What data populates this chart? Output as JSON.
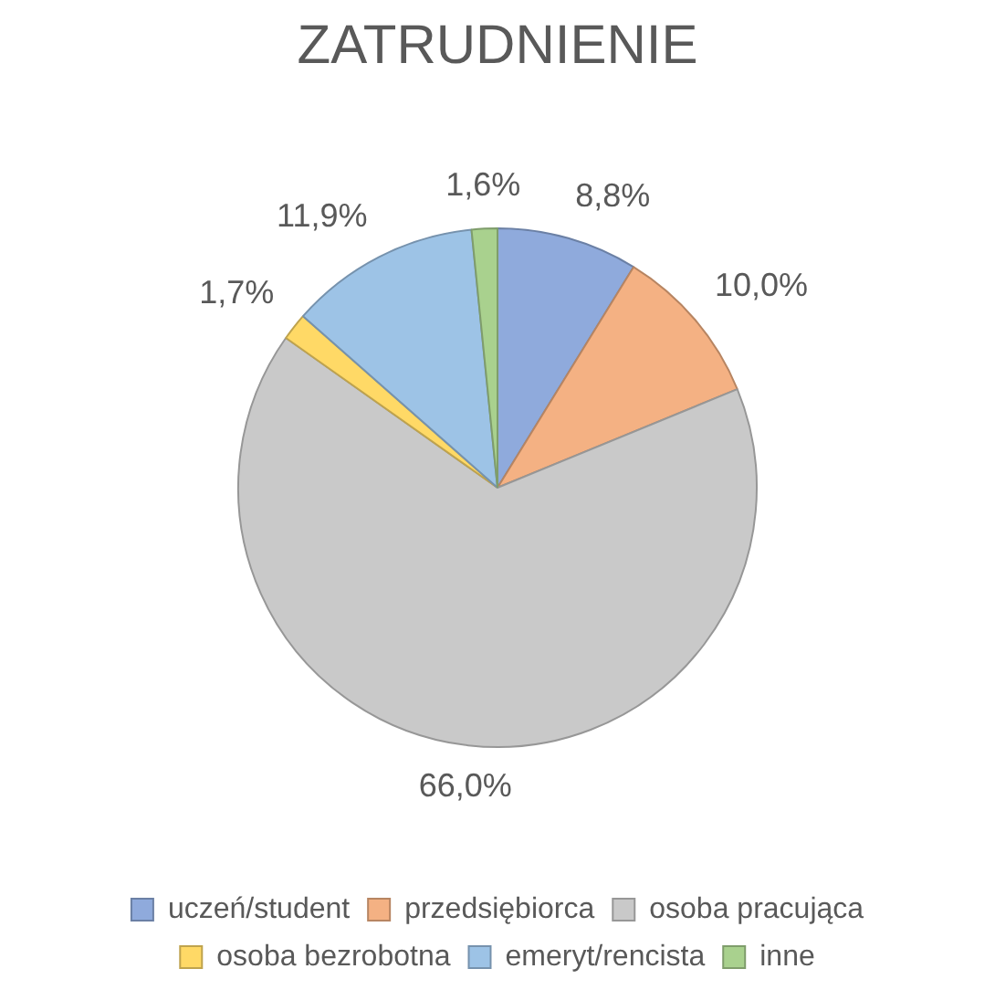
{
  "chart_data": {
    "type": "pie",
    "title": "ZATRUDNIENIE",
    "categories": [
      "uczeń/student",
      "przedsiębiorca",
      "osoba pracująca",
      "osoba bezrobotna",
      "emeryt/rencista",
      "inne"
    ],
    "values": [
      8.8,
      10.0,
      66.0,
      1.7,
      11.9,
      1.6
    ],
    "colors": [
      "#8faadc",
      "#f4b183",
      "#c9c9c9",
      "#ffd966",
      "#9dc3e6",
      "#a9d18e"
    ],
    "value_labels": [
      "8,8%",
      "10,0%",
      "66,0%",
      "1,7%",
      "11,9%",
      "1,6%"
    ],
    "legend": "bottom"
  }
}
